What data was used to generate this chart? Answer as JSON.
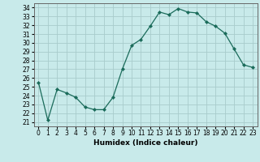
{
  "x": [
    0,
    1,
    2,
    3,
    4,
    5,
    6,
    7,
    8,
    9,
    10,
    11,
    12,
    13,
    14,
    15,
    16,
    17,
    18,
    19,
    20,
    21,
    22,
    23
  ],
  "y": [
    25.5,
    21.2,
    24.7,
    24.3,
    23.8,
    22.7,
    22.4,
    22.4,
    23.8,
    27.0,
    29.7,
    30.4,
    31.9,
    33.5,
    33.2,
    33.9,
    33.5,
    33.4,
    32.4,
    31.9,
    31.1,
    29.3,
    27.5,
    27.2
  ],
  "line_color": "#1a6b5a",
  "marker": "D",
  "marker_size": 2.0,
  "bg_color": "#c8eaea",
  "grid_color": "#a8cccc",
  "xlabel": "Humidex (Indice chaleur)",
  "xlim": [
    -0.5,
    23.5
  ],
  "ylim": [
    20.5,
    34.5
  ],
  "yticks": [
    21,
    22,
    23,
    24,
    25,
    26,
    27,
    28,
    29,
    30,
    31,
    32,
    33,
    34
  ],
  "xticks": [
    0,
    1,
    2,
    3,
    4,
    5,
    6,
    7,
    8,
    9,
    10,
    11,
    12,
    13,
    14,
    15,
    16,
    17,
    18,
    19,
    20,
    21,
    22,
    23
  ]
}
